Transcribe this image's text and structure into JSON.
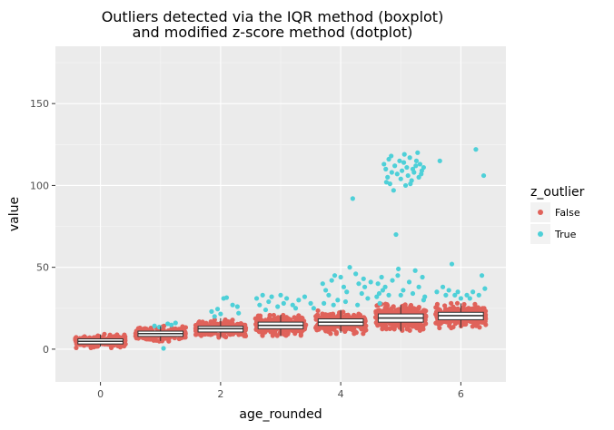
{
  "chart_data": {
    "type": "scatter",
    "title_line1": "Outliers detected via the IQR method (boxplot)",
    "title_line2": "and modified z-score method (dotplot)",
    "xlabel": "age_rounded",
    "ylabel": "value",
    "xlim": [
      -0.75,
      6.75
    ],
    "ylim": [
      -20,
      185
    ],
    "x_ticks": [
      0,
      2,
      4,
      6
    ],
    "y_ticks": [
      0,
      50,
      100,
      150
    ],
    "grid": true,
    "legend": {
      "title": "z_outlier",
      "placement": "right",
      "entries": [
        {
          "label": "False",
          "color": "#e0625a"
        },
        {
          "label": "True",
          "color": "#4ed0d8"
        }
      ]
    },
    "boxes": [
      {
        "x": 0,
        "q1": 3.2,
        "median": 4.8,
        "q3": 6.3,
        "whisker_low": 1.5,
        "whisker_high": 9
      },
      {
        "x": 1,
        "q1": 7.8,
        "median": 9.5,
        "q3": 11,
        "whisker_low": 5,
        "whisker_high": 14
      },
      {
        "x": 2,
        "q1": 10.5,
        "median": 12.5,
        "q3": 14,
        "whisker_low": 7,
        "whisker_high": 19
      },
      {
        "x": 3,
        "q1": 12.5,
        "median": 14.5,
        "q3": 16.5,
        "whisker_low": 8,
        "whisker_high": 21
      },
      {
        "x": 4,
        "q1": 14.5,
        "median": 16.5,
        "q3": 18.5,
        "whisker_low": 10,
        "whisker_high": 24
      },
      {
        "x": 5,
        "q1": 16.5,
        "median": 19,
        "q3": 21.5,
        "whisker_low": 11,
        "whisker_high": 27
      },
      {
        "x": 6,
        "q1": 18,
        "median": 20.5,
        "q3": 22.5,
        "whisker_low": 13,
        "whisker_high": 28
      }
    ],
    "false_clusters": [
      {
        "x": 0,
        "center": 5,
        "spread": 3.2,
        "width": 0.42,
        "n": 230
      },
      {
        "x": 1,
        "center": 9.5,
        "spread": 3.6,
        "width": 0.42,
        "n": 260
      },
      {
        "x": 2,
        "center": 12.5,
        "spread": 4.2,
        "width": 0.42,
        "n": 300
      },
      {
        "x": 3,
        "center": 14.5,
        "spread": 4.8,
        "width": 0.42,
        "n": 330
      },
      {
        "x": 4,
        "center": 16.5,
        "spread": 5.4,
        "width": 0.42,
        "n": 360
      },
      {
        "x": 5,
        "center": 19.5,
        "spread": 6.2,
        "width": 0.42,
        "n": 420
      },
      {
        "x": 6,
        "center": 20.5,
        "spread": 5.8,
        "width": 0.42,
        "n": 330
      }
    ],
    "true_points": [
      [
        1.05,
        0.5
      ],
      [
        0.98,
        13.5
      ],
      [
        1.12,
        15.5
      ],
      [
        1.18,
        14.8
      ],
      [
        0.9,
        14.2
      ],
      [
        1.25,
        16
      ],
      [
        1.85,
        23
      ],
      [
        1.95,
        24.5
      ],
      [
        2.05,
        31
      ],
      [
        2.1,
        31.5
      ],
      [
        2.2,
        27
      ],
      [
        2.28,
        26
      ],
      [
        1.9,
        20
      ],
      [
        2.3,
        22
      ],
      [
        2.0,
        21.5
      ],
      [
        2.6,
        31
      ],
      [
        2.7,
        33
      ],
      [
        2.8,
        29
      ],
      [
        2.85,
        32
      ],
      [
        2.95,
        26
      ],
      [
        3.05,
        28
      ],
      [
        3.1,
        31
      ],
      [
        3.2,
        27
      ],
      [
        3.3,
        30
      ],
      [
        3.4,
        32
      ],
      [
        3.5,
        28
      ],
      [
        3.55,
        25
      ],
      [
        2.65,
        27
      ],
      [
        2.75,
        24
      ],
      [
        3.0,
        33
      ],
      [
        3.25,
        25
      ],
      [
        3.7,
        40
      ],
      [
        3.75,
        36
      ],
      [
        3.8,
        33
      ],
      [
        3.85,
        42
      ],
      [
        3.9,
        45
      ],
      [
        3.95,
        30
      ],
      [
        4.0,
        44
      ],
      [
        4.05,
        38
      ],
      [
        4.1,
        35
      ],
      [
        4.15,
        50
      ],
      [
        4.2,
        92
      ],
      [
        4.25,
        46
      ],
      [
        4.3,
        40
      ],
      [
        4.35,
        34
      ],
      [
        4.4,
        38
      ],
      [
        4.45,
        31
      ],
      [
        4.5,
        41
      ],
      [
        3.72,
        28
      ],
      [
        4.28,
        27
      ],
      [
        3.88,
        27
      ],
      [
        4.08,
        29
      ],
      [
        4.38,
        43
      ],
      [
        4.6,
        32
      ],
      [
        4.65,
        28
      ],
      [
        4.7,
        36
      ],
      [
        4.72,
        113
      ],
      [
        4.75,
        110
      ],
      [
        4.78,
        105
      ],
      [
        4.8,
        116
      ],
      [
        4.82,
        101
      ],
      [
        4.85,
        108
      ],
      [
        4.88,
        97
      ],
      [
        4.9,
        112
      ],
      [
        4.92,
        70
      ],
      [
        4.95,
        45
      ],
      [
        4.98,
        115
      ],
      [
        5.0,
        104
      ],
      [
        5.02,
        109
      ],
      [
        5.05,
        114
      ],
      [
        5.08,
        100
      ],
      [
        5.1,
        111
      ],
      [
        5.12,
        106
      ],
      [
        5.15,
        117
      ],
      [
        5.18,
        103
      ],
      [
        5.2,
        110
      ],
      [
        5.22,
        108
      ],
      [
        5.25,
        112
      ],
      [
        5.28,
        120
      ],
      [
        5.3,
        105
      ],
      [
        5.32,
        113
      ],
      [
        5.35,
        109
      ],
      [
        5.38,
        111
      ],
      [
        4.76,
        102
      ],
      [
        4.84,
        118
      ],
      [
        4.94,
        107
      ],
      [
        5.06,
        119
      ],
      [
        5.16,
        101
      ],
      [
        5.26,
        115
      ],
      [
        5.34,
        107
      ],
      [
        4.62,
        40
      ],
      [
        4.68,
        44
      ],
      [
        4.74,
        38
      ],
      [
        4.86,
        42
      ],
      [
        4.96,
        49
      ],
      [
        5.04,
        36
      ],
      [
        5.14,
        41
      ],
      [
        5.24,
        48
      ],
      [
        5.3,
        38
      ],
      [
        5.36,
        44
      ],
      [
        5.4,
        32
      ],
      [
        4.64,
        34
      ],
      [
        4.8,
        33
      ],
      [
        5.0,
        33
      ],
      [
        5.2,
        34
      ],
      [
        5.38,
        30
      ],
      [
        5.6,
        35
      ],
      [
        5.65,
        115
      ],
      [
        5.7,
        38
      ],
      [
        5.75,
        33
      ],
      [
        5.8,
        36
      ],
      [
        5.85,
        52
      ],
      [
        5.9,
        33
      ],
      [
        6.0,
        31
      ],
      [
        6.1,
        33
      ],
      [
        6.2,
        35
      ],
      [
        6.25,
        122
      ],
      [
        6.3,
        33
      ],
      [
        6.35,
        45
      ],
      [
        6.38,
        106
      ],
      [
        6.4,
        37
      ],
      [
        5.95,
        35
      ],
      [
        6.15,
        31
      ]
    ]
  }
}
